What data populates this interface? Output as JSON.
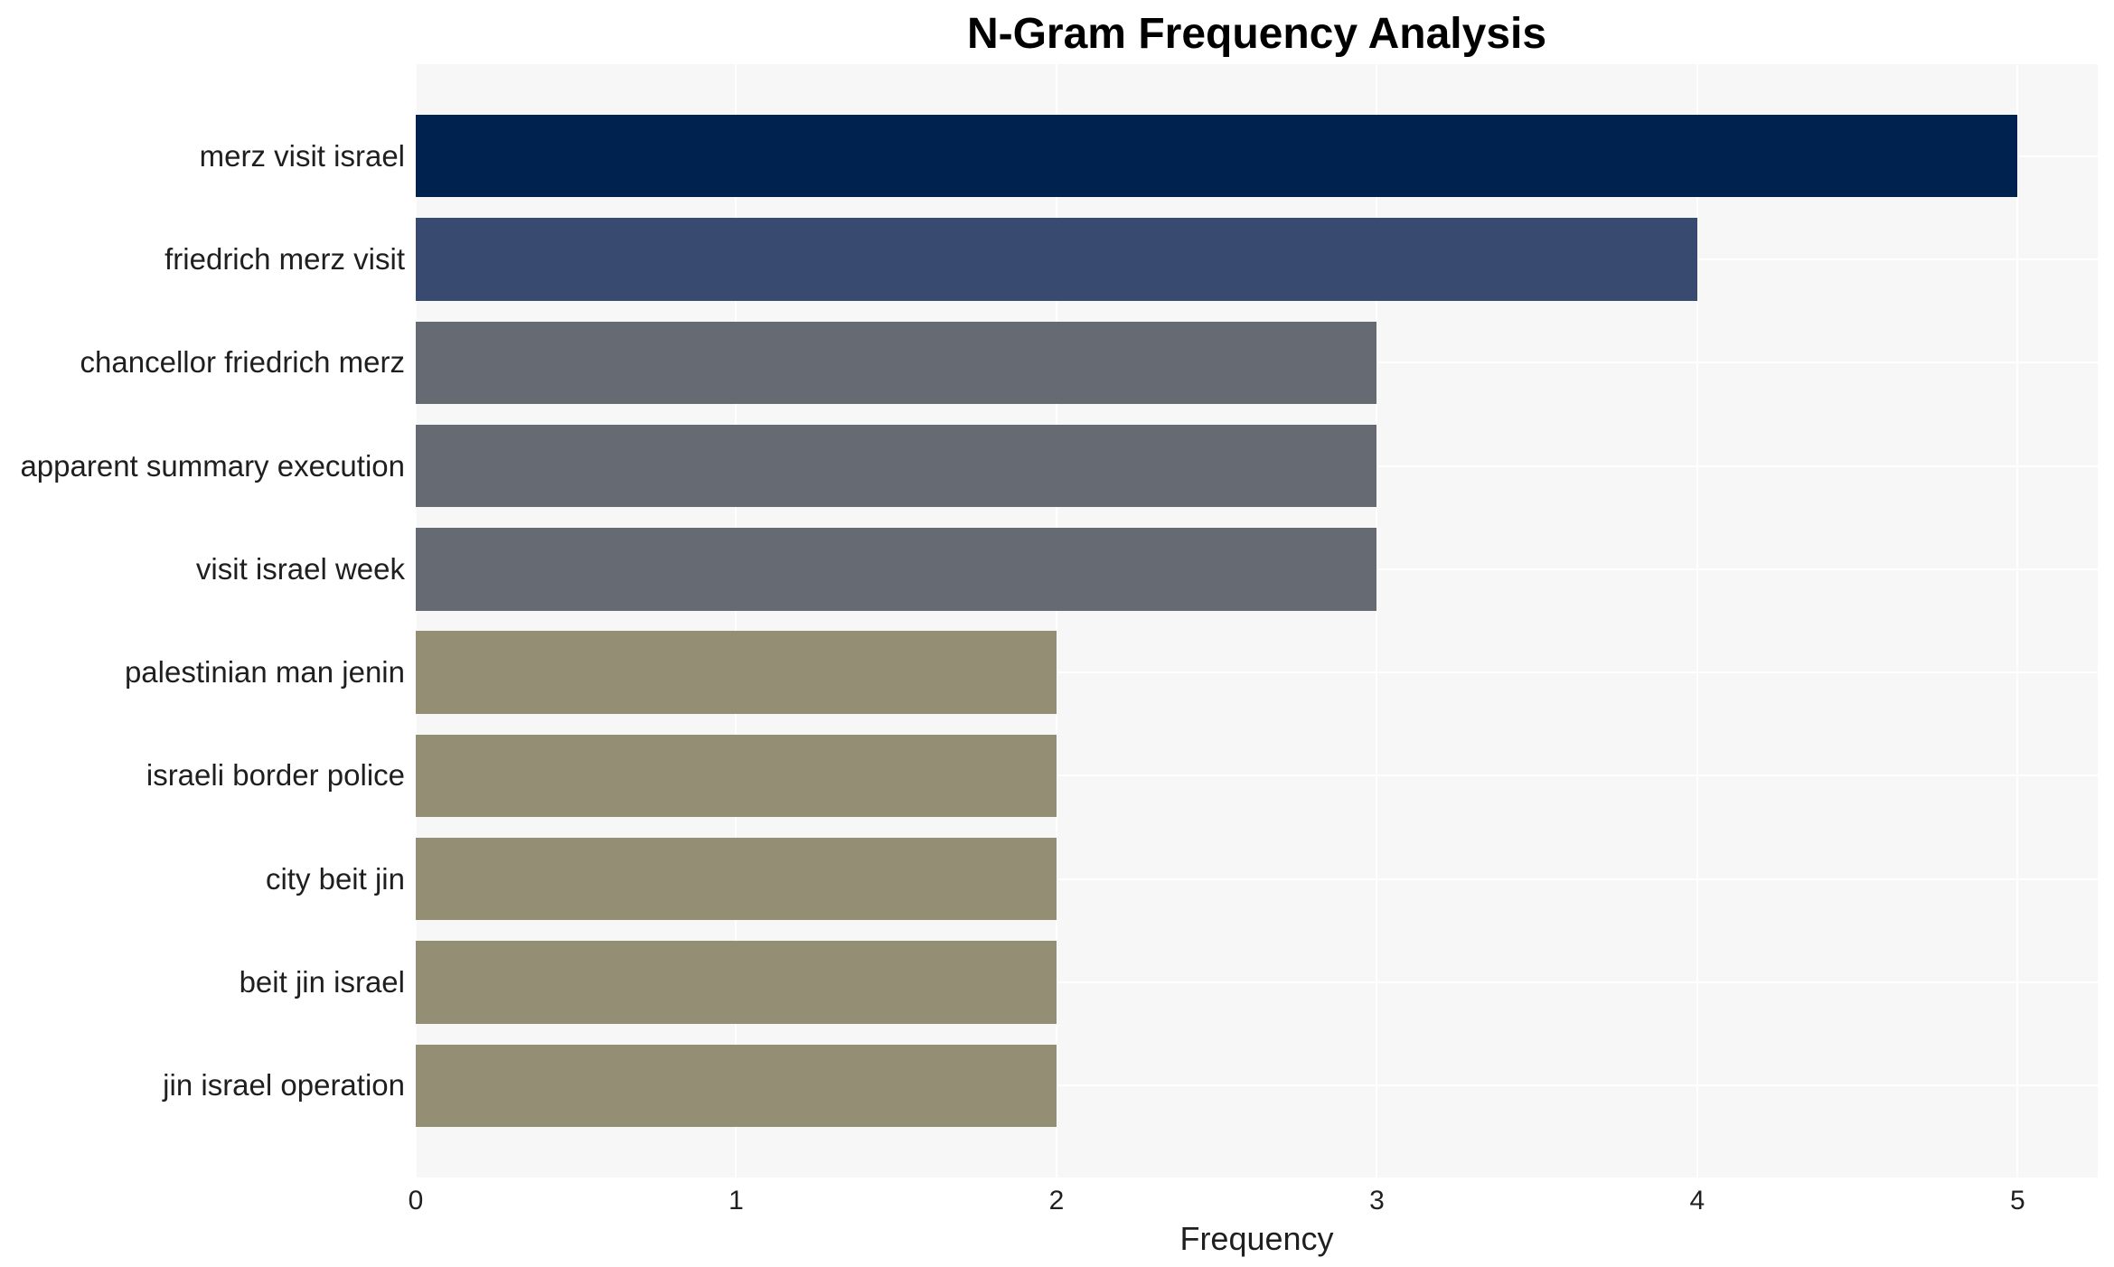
{
  "title": "N-Gram Frequency Analysis",
  "chart_data": {
    "type": "bar",
    "orientation": "horizontal",
    "title": "N-Gram Frequency Analysis",
    "xlabel": "Frequency",
    "ylabel": "",
    "categories": [
      "merz visit israel",
      "friedrich merz visit",
      "chancellor friedrich merz",
      "apparent summary execution",
      "visit israel week",
      "palestinian man jenin",
      "israeli border police",
      "city beit jin",
      "beit jin israel",
      "jin israel operation"
    ],
    "values": [
      5,
      4,
      3,
      3,
      3,
      2,
      2,
      2,
      2,
      2
    ],
    "bar_colors": [
      "#00224e",
      "#394a70",
      "#666a72",
      "#666a72",
      "#666a72",
      "#948e75",
      "#948e75",
      "#948e75",
      "#948e75",
      "#948e75"
    ],
    "xticks": [
      0,
      1,
      2,
      3,
      4,
      5
    ],
    "xlim": [
      0,
      5.25
    ],
    "grid": true,
    "legend": "none",
    "plot_background": "#f7f7f7",
    "grid_color": "#ffffff",
    "text_color": "#1f1f1f",
    "title_color": "#000000"
  }
}
